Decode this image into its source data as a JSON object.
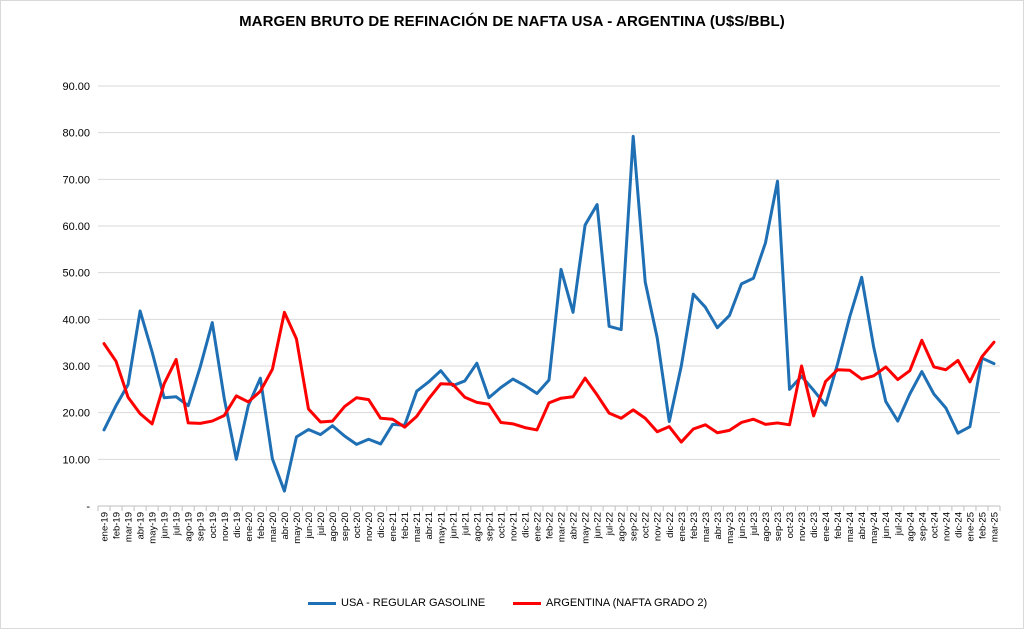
{
  "chart_data": {
    "type": "line",
    "title": "MARGEN BRUTO DE REFINACIÓN DE NAFTA USA - ARGENTINA (U$S/BBL)",
    "xlabel": "",
    "ylabel": "",
    "ylim": [
      0,
      90
    ],
    "yticks": [
      {
        "value": 0,
        "label": "-"
      },
      {
        "value": 10,
        "label": "10.00"
      },
      {
        "value": 20,
        "label": "20.00"
      },
      {
        "value": 30,
        "label": "30.00"
      },
      {
        "value": 40,
        "label": "40.00"
      },
      {
        "value": 50,
        "label": "50.00"
      },
      {
        "value": 60,
        "label": "60.00"
      },
      {
        "value": 70,
        "label": "70.00"
      },
      {
        "value": 80,
        "label": "80.00"
      },
      {
        "value": 90,
        "label": "90.00"
      }
    ],
    "grid": true,
    "legend_position": "bottom",
    "categories": [
      "ene-19",
      "feb-19",
      "mar-19",
      "abr-19",
      "may-19",
      "jun-19",
      "jul-19",
      "ago-19",
      "sep-19",
      "oct-19",
      "nov-19",
      "dic-19",
      "ene-20",
      "feb-20",
      "mar-20",
      "abr-20",
      "may-20",
      "jun-20",
      "jul-20",
      "ago-20",
      "sep-20",
      "oct-20",
      "nov-20",
      "dic-20",
      "ene-21",
      "feb-21",
      "mar-21",
      "abr-21",
      "may-21",
      "jun-21",
      "jul-21",
      "ago-21",
      "sep-21",
      "oct-21",
      "nov-21",
      "dic-21",
      "ene-22",
      "feb-22",
      "mar-22",
      "abr-22",
      "may-22",
      "jun-22",
      "jul-22",
      "ago-22",
      "sep-22",
      "oct-22",
      "nov-22",
      "dic-22",
      "ene-23",
      "feb-23",
      "mar-23",
      "abr-23",
      "may-23",
      "jun-23",
      "jul-23",
      "ago-23",
      "sep-23",
      "oct-23",
      "nov-23",
      "dic-23",
      "ene-24",
      "feb-24",
      "mar-24",
      "abr-24",
      "may-24",
      "jun-24",
      "jul-24",
      "ago-24",
      "sep-24",
      "oct-24",
      "nov-24",
      "dic-24",
      "ene-25",
      "feb-25",
      "mar-25"
    ],
    "series": [
      {
        "name": "USA - REGULAR GASOLINE",
        "color": "#1f6fb4",
        "values": [
          16.3,
          21.5,
          26.0,
          41.8,
          33.0,
          23.2,
          23.4,
          21.5,
          29.8,
          39.3,
          23.0,
          10.0,
          21.5,
          27.4,
          10.1,
          3.2,
          14.8,
          16.4,
          15.3,
          17.2,
          15.0,
          13.2,
          14.3,
          13.3,
          17.5,
          17.3,
          24.6,
          26.6,
          29.0,
          25.8,
          26.8,
          30.6,
          23.2,
          25.4,
          27.2,
          25.8,
          24.1,
          27.0,
          50.7,
          41.5,
          60.2,
          64.6,
          38.5,
          37.8,
          79.2,
          48.0,
          36.0,
          18.1,
          30.0,
          45.4,
          42.6,
          38.2,
          40.8,
          47.6,
          48.8,
          56.4,
          69.6,
          25.0,
          27.8,
          24.8,
          21.6,
          30.5,
          40.5,
          49.0,
          34.0,
          22.4,
          18.2,
          24.0,
          28.8,
          24.0,
          21.0,
          15.6,
          17.0,
          31.7,
          30.5
        ]
      },
      {
        "name": "ARGENTINA (NAFTA GRADO 2)",
        "color": "#ff0000",
        "values": [
          34.8,
          31.0,
          23.3,
          19.8,
          17.6,
          26.2,
          31.4,
          17.8,
          17.7,
          18.2,
          19.4,
          23.6,
          22.3,
          24.6,
          29.3,
          41.5,
          35.8,
          20.8,
          18.0,
          18.2,
          21.3,
          23.2,
          22.8,
          18.8,
          18.6,
          16.9,
          19.2,
          23.0,
          26.2,
          26.1,
          23.3,
          22.2,
          21.8,
          17.9,
          17.6,
          16.8,
          16.3,
          22.1,
          23.1,
          23.4,
          27.4,
          23.8,
          19.9,
          18.8,
          20.6,
          18.8,
          15.9,
          17.0,
          13.7,
          16.5,
          17.4,
          15.7,
          16.2,
          17.9,
          18.6,
          17.5,
          17.8,
          17.4,
          30.0,
          19.3,
          26.7,
          29.2,
          29.1,
          27.2,
          27.9,
          29.8,
          27.1,
          29.0,
          35.5,
          29.8,
          29.2,
          31.2,
          26.6,
          32.0,
          35.1
        ]
      }
    ]
  }
}
